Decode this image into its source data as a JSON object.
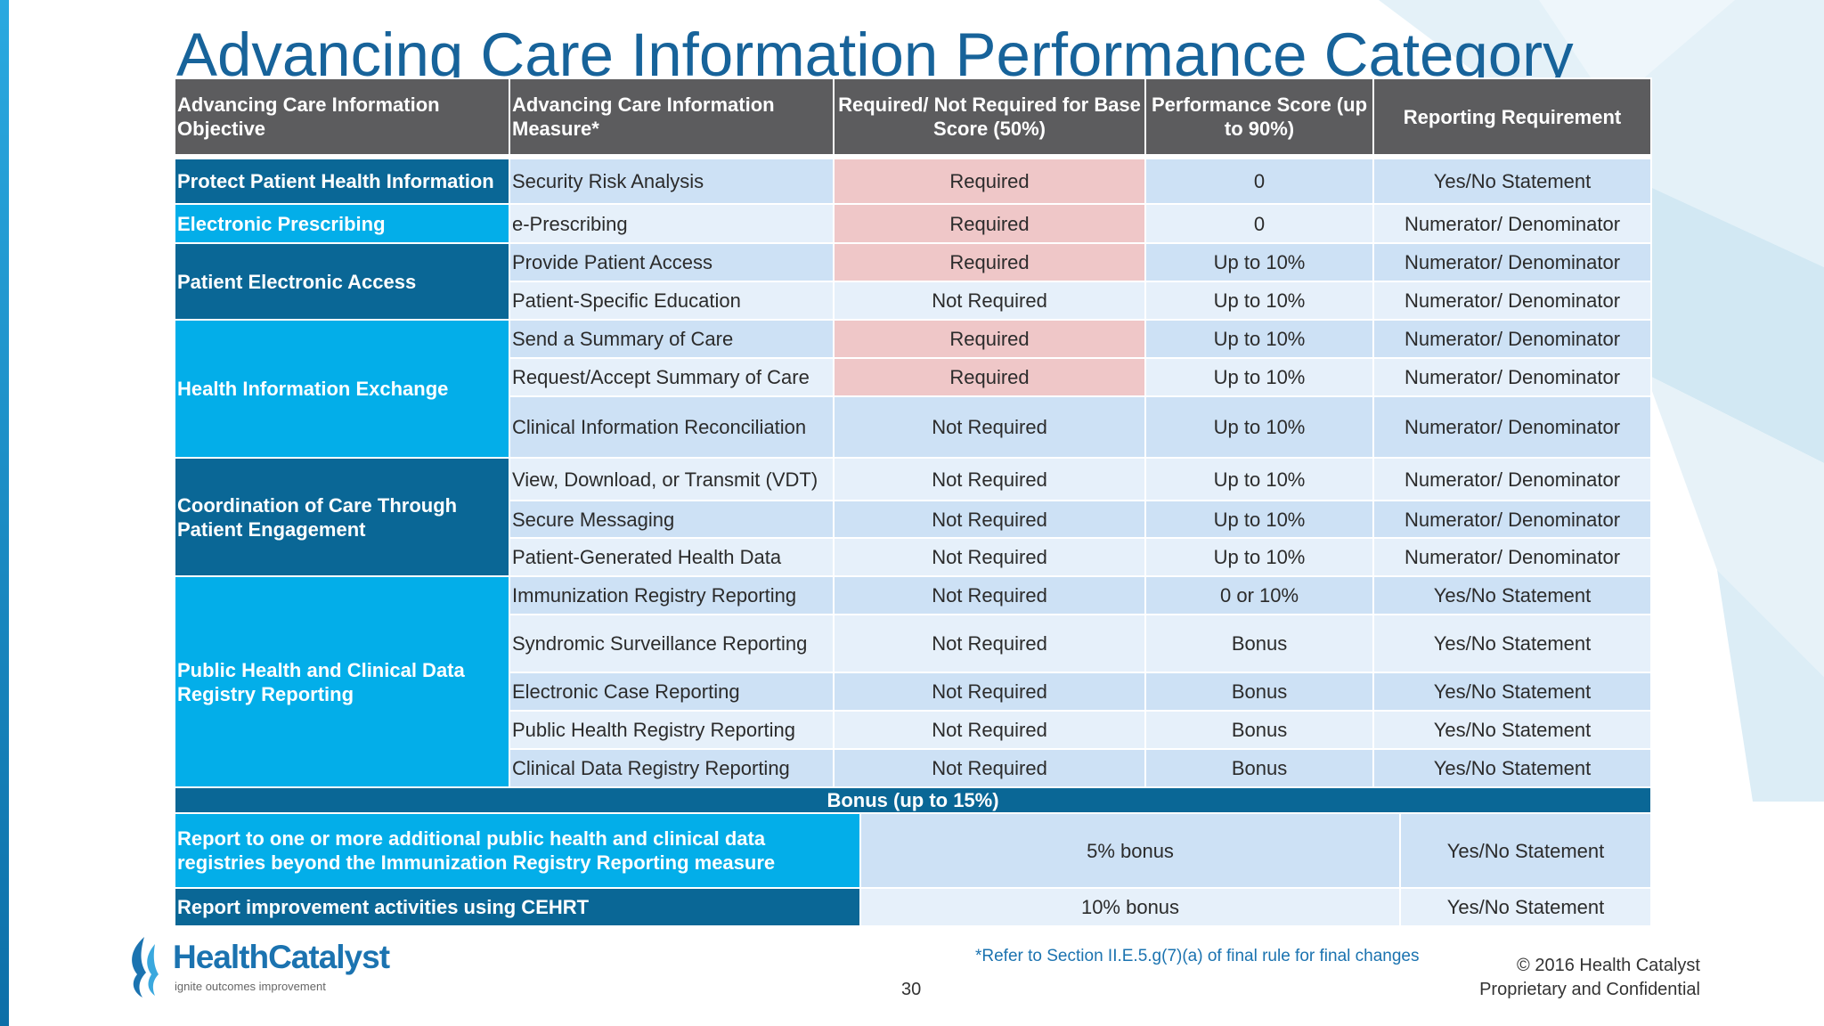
{
  "title": "Advancing Care Information Performance Category",
  "headers": {
    "objective": "Advancing Care Information Objective",
    "measure": "Advancing Care Information Measure*",
    "required": "Required/ Not Required for Base Score (50%)",
    "score": "Performance Score (up to 90%)",
    "reporting": "Reporting Requirement"
  },
  "objectives": [
    "Protect Patient Health Information",
    "Electronic Prescribing",
    "Patient Electronic Access",
    "Health Information Exchange",
    "Coordination of Care Through Patient Engagement",
    "Public Health and Clinical Data Registry Reporting"
  ],
  "rows": [
    {
      "measure": "Security Risk Analysis",
      "required": "Required",
      "score": "0",
      "reporting": "Yes/No Statement"
    },
    {
      "measure": "e-Prescribing",
      "required": "Required",
      "score": "0",
      "reporting": "Numerator/ Denominator"
    },
    {
      "measure": "Provide Patient Access",
      "required": "Required",
      "score": "Up to 10%",
      "reporting": "Numerator/ Denominator"
    },
    {
      "measure": "Patient-Specific Education",
      "required": "Not Required",
      "score": "Up to 10%",
      "reporting": "Numerator/ Denominator"
    },
    {
      "measure": "Send a Summary of Care",
      "required": "Required",
      "score": "Up to 10%",
      "reporting": "Numerator/ Denominator"
    },
    {
      "measure": "Request/Accept Summary of Care",
      "required": "Required",
      "score": "Up to 10%",
      "reporting": "Numerator/ Denominator"
    },
    {
      "measure": "Clinical Information Reconciliation",
      "required": "Not Required",
      "score": "Up to 10%",
      "reporting": "Numerator/ Denominator"
    },
    {
      "measure": "View, Download, or Transmit (VDT)",
      "required": "Not Required",
      "score": "Up to 10%",
      "reporting": "Numerator/ Denominator"
    },
    {
      "measure": "Secure Messaging",
      "required": "Not Required",
      "score": "Up to 10%",
      "reporting": "Numerator/ Denominator"
    },
    {
      "measure": "Patient-Generated Health Data",
      "required": "Not Required",
      "score": "Up to 10%",
      "reporting": "Numerator/ Denominator"
    },
    {
      "measure": "Immunization Registry Reporting",
      "required": "Not Required",
      "score": "0 or 10%",
      "reporting": "Yes/No Statement"
    },
    {
      "measure": "Syndromic Surveillance Reporting",
      "required": "Not Required",
      "score": "Bonus",
      "reporting": "Yes/No Statement"
    },
    {
      "measure": "Electronic Case Reporting",
      "required": "Not Required",
      "score": "Bonus",
      "reporting": "Yes/No Statement"
    },
    {
      "measure": "Public Health Registry Reporting",
      "required": "Not Required",
      "score": "Bonus",
      "reporting": "Yes/No Statement"
    },
    {
      "measure": "Clinical Data Registry Reporting",
      "required": "Not Required",
      "score": "Bonus",
      "reporting": "Yes/No Statement"
    }
  ],
  "bonus": {
    "heading": "Bonus (up to 15%)",
    "rows": [
      {
        "description": "Report to one or more additional public health and clinical data registries beyond the Immunization Registry Reporting measure",
        "bonus": "5% bonus",
        "reporting": "Yes/No Statement"
      },
      {
        "description": "Report improvement activities using CEHRT",
        "bonus": "10% bonus",
        "reporting": "Yes/No Statement"
      }
    ]
  },
  "footer": {
    "logo_name": "HealthCatalyst",
    "logo_tagline": "ignite outcomes improvement",
    "footnote": "*Refer to Section II.E.5.g(7)(a) of final rule for final changes",
    "page_number": "30",
    "copyright_line1": "© 2016 Health Catalyst",
    "copyright_line2": "Proprietary and Confidential"
  },
  "colors": {
    "title": "#17639a",
    "header_bg": "#5c5c5e",
    "objective_dark": "#0a6796",
    "objective_bright": "#03aee9",
    "row_dark": "#cde1f5",
    "row_light": "#e6f0fa",
    "required_highlight": "#efc7c8"
  }
}
